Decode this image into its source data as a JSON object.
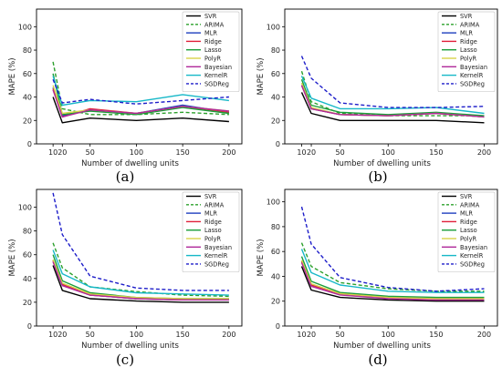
{
  "colors": {
    "SVR": "#000000",
    "ARIMA": "#2ca02c",
    "MLR": "#1f3fbf",
    "Ridge": "#e0203a",
    "Lasso": "#1a9e3a",
    "PolyR": "#d8d34a",
    "Bayesian": "#b0299a",
    "KernelR": "#17b8c8",
    "SGDReg": "#1d1dc9"
  },
  "chart_data": [
    {
      "type": "line",
      "caption": "(a)",
      "xlabel": "Number of dwelling units",
      "ylabel": "MAPE (%)",
      "x": [
        10,
        20,
        50,
        100,
        150,
        200
      ],
      "xticks": [
        10,
        20,
        50,
        100,
        150,
        200
      ],
      "ylim": [
        0,
        115
      ],
      "yticks": [
        0,
        20,
        40,
        60,
        80,
        100
      ],
      "legend_position": "top-right",
      "grid": false,
      "series": [
        {
          "name": "SVR",
          "values": [
            40,
            18,
            22,
            20,
            22,
            19
          ],
          "dash": "solid"
        },
        {
          "name": "ARIMA",
          "values": [
            70,
            30,
            25,
            25,
            27,
            25
          ],
          "dash": "dashed"
        },
        {
          "name": "MLR",
          "values": [
            48,
            24,
            29,
            26,
            33,
            27
          ],
          "dash": "solid"
        },
        {
          "name": "Ridge",
          "values": [
            47,
            23,
            30,
            26,
            32,
            27
          ],
          "dash": "solid"
        },
        {
          "name": "Lasso",
          "values": [
            60,
            25,
            28,
            25,
            31,
            26
          ],
          "dash": "solid"
        },
        {
          "name": "PolyR",
          "values": [
            50,
            26,
            29,
            26,
            32,
            28
          ],
          "dash": "solid"
        },
        {
          "name": "Bayesian",
          "values": [
            46,
            23,
            29,
            26,
            32,
            28
          ],
          "dash": "solid"
        },
        {
          "name": "KernelR",
          "values": [
            58,
            33,
            37,
            36,
            42,
            37
          ],
          "dash": "solid"
        },
        {
          "name": "SGDReg",
          "values": [
            55,
            35,
            38,
            34,
            37,
            40
          ],
          "dash": "dashed"
        }
      ]
    },
    {
      "type": "line",
      "caption": "(b)",
      "xlabel": "Number of dwelling units",
      "ylabel": "MAPE (%)",
      "x": [
        10,
        20,
        50,
        100,
        150,
        200
      ],
      "xticks": [
        10,
        20,
        50,
        100,
        150,
        200
      ],
      "ylim": [
        0,
        115
      ],
      "yticks": [
        0,
        20,
        40,
        60,
        80,
        100
      ],
      "legend_position": "top-right",
      "grid": false,
      "series": [
        {
          "name": "SVR",
          "values": [
            44,
            26,
            20,
            20,
            20,
            18
          ],
          "dash": "solid"
        },
        {
          "name": "ARIMA",
          "values": [
            62,
            36,
            26,
            24,
            24,
            24
          ],
          "dash": "dashed"
        },
        {
          "name": "MLR",
          "values": [
            50,
            30,
            25,
            24,
            26,
            23
          ],
          "dash": "solid"
        },
        {
          "name": "Ridge",
          "values": [
            50,
            30,
            25,
            24,
            26,
            23
          ],
          "dash": "solid"
        },
        {
          "name": "Lasso",
          "values": [
            55,
            33,
            27,
            25,
            27,
            24
          ],
          "dash": "solid"
        },
        {
          "name": "PolyR",
          "values": [
            52,
            31,
            25,
            24,
            26,
            23
          ],
          "dash": "solid"
        },
        {
          "name": "Bayesian",
          "values": [
            50,
            30,
            25,
            24,
            26,
            23
          ],
          "dash": "solid"
        },
        {
          "name": "KernelR",
          "values": [
            58,
            39,
            30,
            30,
            31,
            26
          ],
          "dash": "solid"
        },
        {
          "name": "SGDReg",
          "values": [
            75,
            56,
            35,
            31,
            31,
            32
          ],
          "dash": "dashed"
        }
      ]
    },
    {
      "type": "line",
      "caption": "(c)",
      "xlabel": "Number of dwelling units",
      "ylabel": "MAPE (%)",
      "x": [
        10,
        20,
        50,
        100,
        150,
        200
      ],
      "xticks": [
        10,
        20,
        50,
        100,
        150,
        200
      ],
      "ylim": [
        0,
        115
      ],
      "yticks": [
        0,
        20,
        40,
        60,
        80,
        100
      ],
      "legend_position": "top-right",
      "grid": false,
      "series": [
        {
          "name": "SVR",
          "values": [
            51,
            30,
            23,
            21,
            20,
            20
          ],
          "dash": "solid"
        },
        {
          "name": "ARIMA",
          "values": [
            70,
            49,
            33,
            29,
            26,
            25
          ],
          "dash": "dashed"
        },
        {
          "name": "MLR",
          "values": [
            55,
            35,
            26,
            23,
            22,
            22
          ],
          "dash": "solid"
        },
        {
          "name": "Ridge",
          "values": [
            55,
            35,
            26,
            23,
            22,
            22
          ],
          "dash": "solid"
        },
        {
          "name": "Lasso",
          "values": [
            60,
            38,
            28,
            24,
            23,
            23
          ],
          "dash": "solid"
        },
        {
          "name": "PolyR",
          "values": [
            56,
            36,
            27,
            24,
            23,
            23
          ],
          "dash": "solid"
        },
        {
          "name": "Bayesian",
          "values": [
            54,
            34,
            26,
            23,
            22,
            22
          ],
          "dash": "solid"
        },
        {
          "name": "KernelR",
          "values": [
            64,
            44,
            33,
            28,
            27,
            26
          ],
          "dash": "solid"
        },
        {
          "name": "SGDReg",
          "values": [
            112,
            77,
            42,
            32,
            30,
            30
          ],
          "dash": "dashed"
        }
      ]
    },
    {
      "type": "line",
      "caption": "(d)",
      "xlabel": "Number of dwelling units",
      "ylabel": "MAPE (%)",
      "x": [
        10,
        20,
        50,
        100,
        150,
        200
      ],
      "xticks": [
        10,
        20,
        50,
        100,
        150,
        200
      ],
      "ylim": [
        0,
        110
      ],
      "yticks": [
        0,
        20,
        40,
        60,
        80,
        100
      ],
      "legend_position": "top-right",
      "grid": false,
      "series": [
        {
          "name": "SVR",
          "values": [
            48,
            29,
            23,
            21,
            20,
            20
          ],
          "dash": "solid"
        },
        {
          "name": "ARIMA",
          "values": [
            67,
            48,
            35,
            30,
            28,
            28
          ],
          "dash": "dashed"
        },
        {
          "name": "MLR",
          "values": [
            52,
            33,
            26,
            23,
            22,
            22
          ],
          "dash": "solid"
        },
        {
          "name": "Ridge",
          "values": [
            52,
            33,
            26,
            23,
            22,
            22
          ],
          "dash": "solid"
        },
        {
          "name": "Lasso",
          "values": [
            56,
            36,
            27,
            24,
            23,
            23
          ],
          "dash": "solid"
        },
        {
          "name": "PolyR",
          "values": [
            53,
            34,
            26,
            23,
            22,
            22
          ],
          "dash": "solid"
        },
        {
          "name": "Bayesian",
          "values": [
            51,
            32,
            25,
            22,
            21,
            21
          ],
          "dash": "solid"
        },
        {
          "name": "KernelR",
          "values": [
            62,
            43,
            33,
            28,
            27,
            27
          ],
          "dash": "solid"
        },
        {
          "name": "SGDReg",
          "values": [
            96,
            66,
            39,
            31,
            28,
            30
          ],
          "dash": "dashed"
        }
      ]
    }
  ]
}
